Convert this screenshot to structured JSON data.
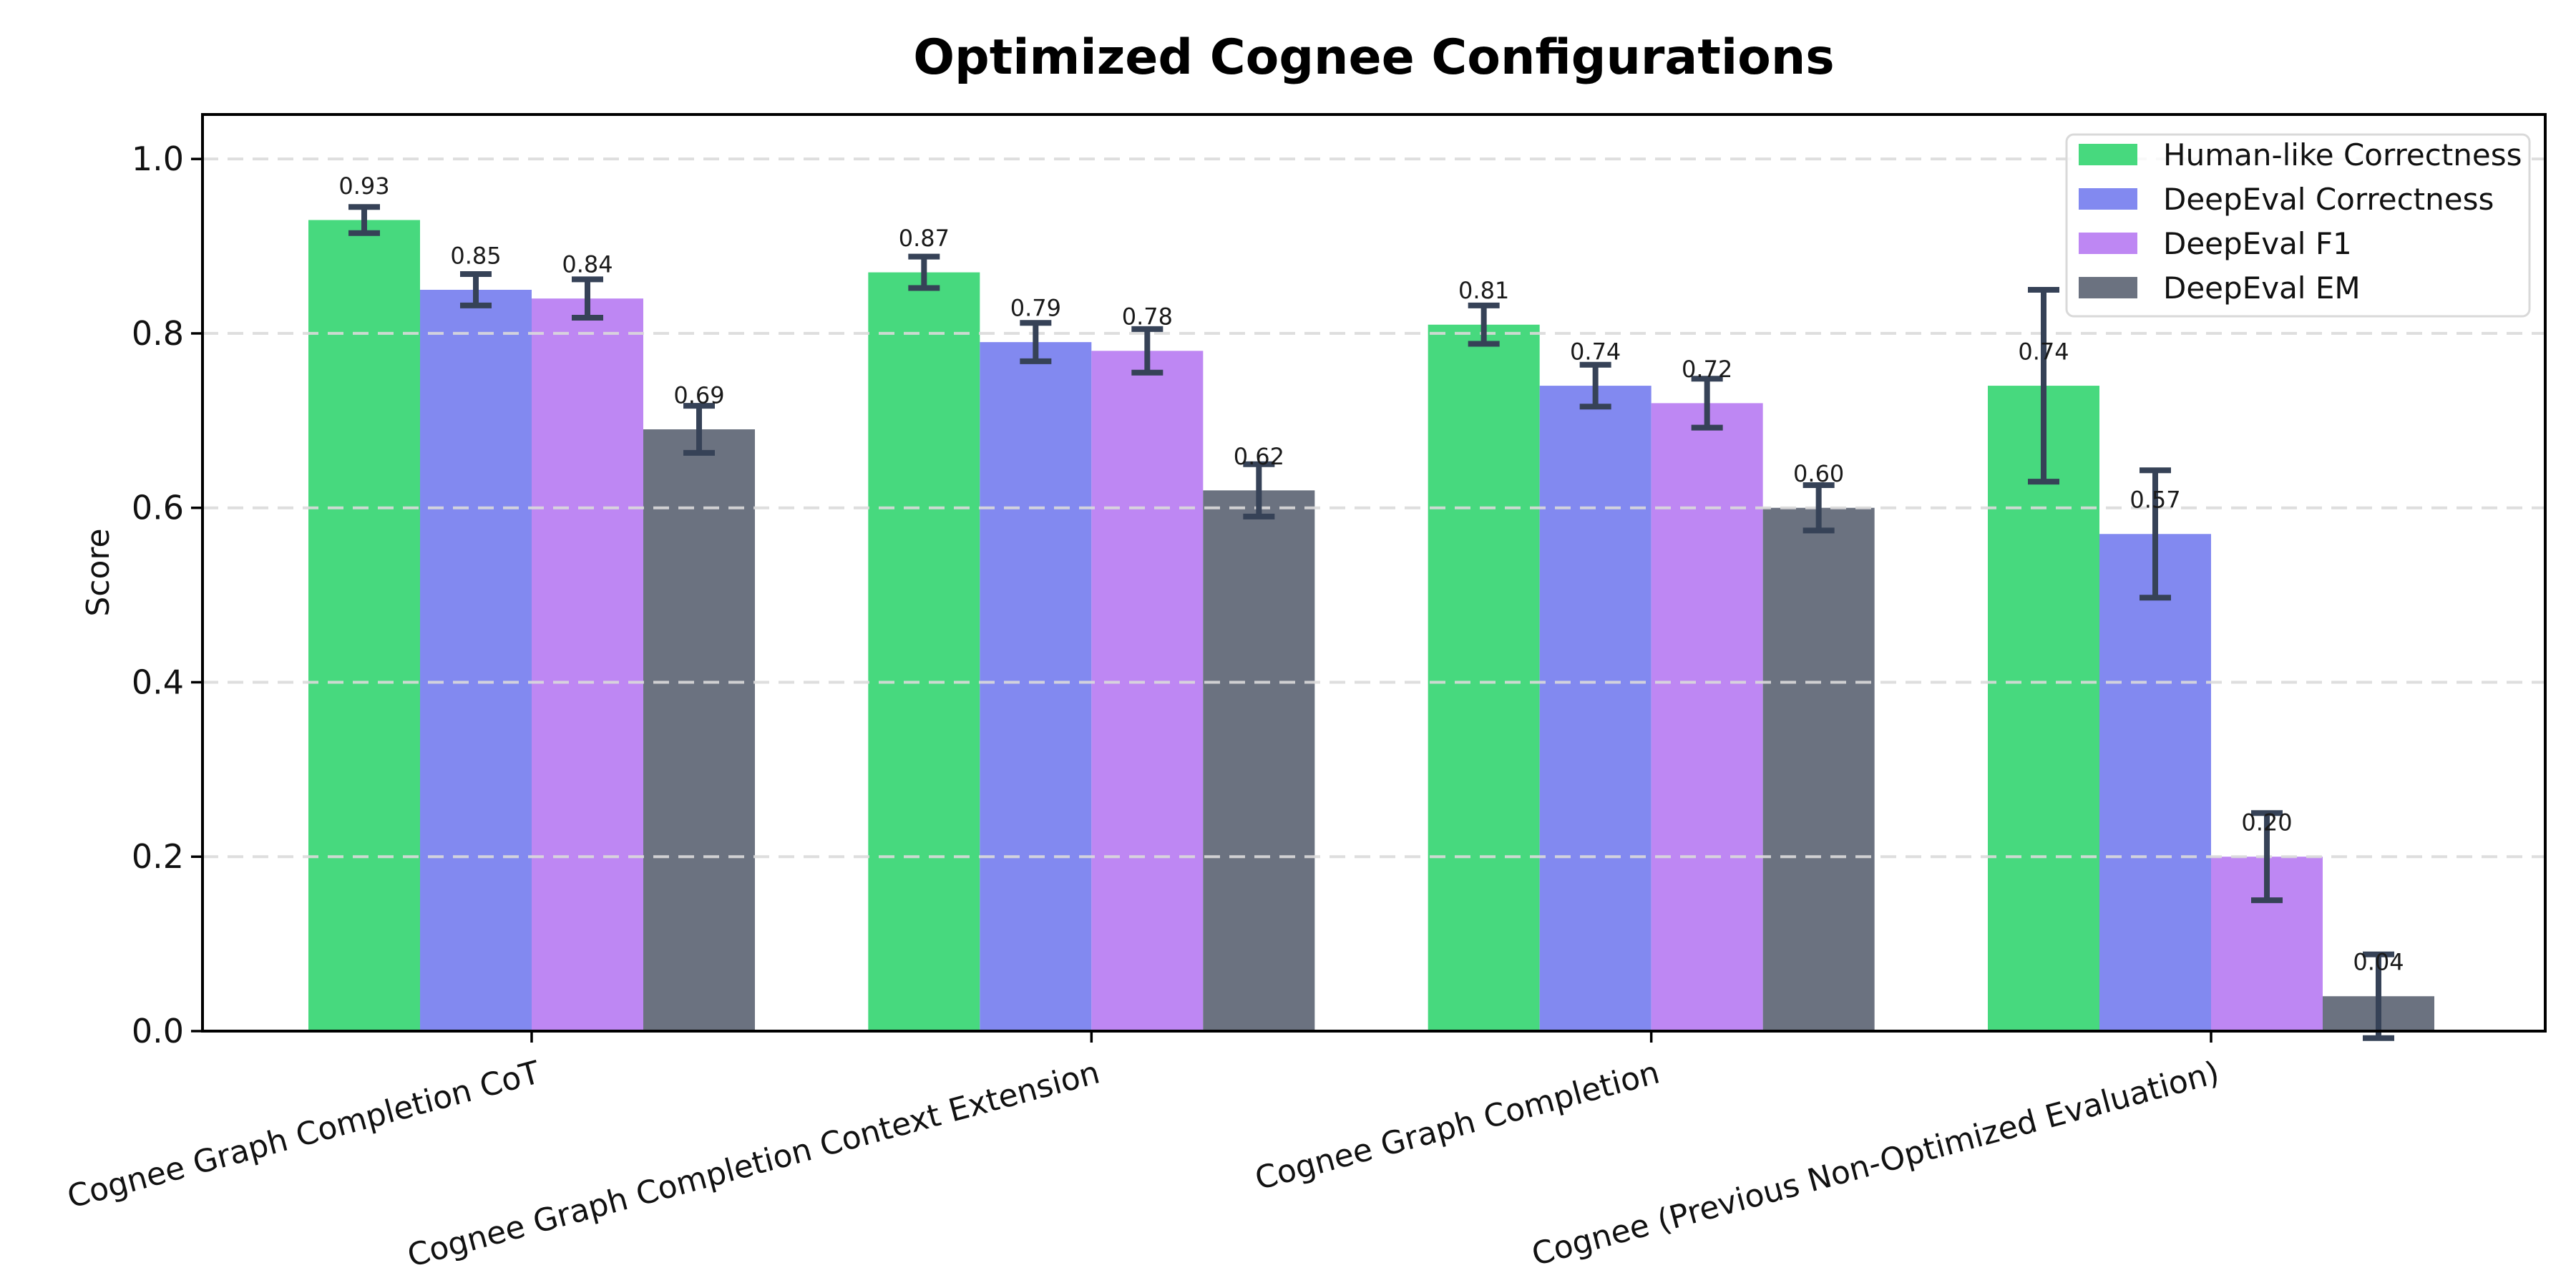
{
  "page": {
    "background": "#FFFFFF"
  },
  "chart_data": {
    "type": "bar",
    "title": "Optimized Cognee Configurations",
    "ylabel": "Score",
    "xlabel": "",
    "categories": [
      "Cognee Graph Completion CoT",
      "Cognee Graph Completion Context Extension",
      "Cognee Graph Completion",
      "Cognee (Previous Non-Optimized Evaluation)"
    ],
    "series": [
      {
        "name": "Human-like Correctness",
        "color": "#47D97E",
        "values": [
          0.93,
          0.87,
          0.81,
          0.74
        ],
        "errors": [
          0.015,
          0.018,
          0.022,
          0.11
        ]
      },
      {
        "name": "DeepEval Correctness",
        "color": "#8289F0",
        "values": [
          0.85,
          0.79,
          0.74,
          0.57
        ],
        "errors": [
          0.018,
          0.022,
          0.024,
          0.073
        ]
      },
      {
        "name": "DeepEval F1",
        "color": "#BE87F3",
        "values": [
          0.84,
          0.78,
          0.72,
          0.2
        ],
        "errors": [
          0.022,
          0.025,
          0.028,
          0.05
        ]
      },
      {
        "name": "DeepEval EM",
        "color": "#6B7280",
        "values": [
          0.69,
          0.62,
          0.6,
          0.04
        ],
        "errors": [
          0.027,
          0.03,
          0.026,
          0.048
        ]
      }
    ],
    "bar_value_labels": [
      [
        "0.93",
        "0.85",
        "0.84",
        "0.69"
      ],
      [
        "0.87",
        "0.79",
        "0.78",
        "0.62"
      ],
      [
        "0.81",
        "0.74",
        "0.72",
        "0.60"
      ],
      [
        "0.74",
        "0.57",
        "0.20",
        "0.04"
      ]
    ],
    "yticks": [
      "0.0",
      "0.2",
      "0.4",
      "0.6",
      "0.8",
      "1.0"
    ],
    "ylim": [
      0,
      1.05
    ],
    "grid": {
      "axis": "y",
      "style": "dashed",
      "color": "#DBDBDB"
    },
    "legend": {
      "position": "upper right"
    },
    "error_bar_color": "#364257",
    "axis_color": "#000000",
    "x_tick_rotation_deg": 15
  }
}
